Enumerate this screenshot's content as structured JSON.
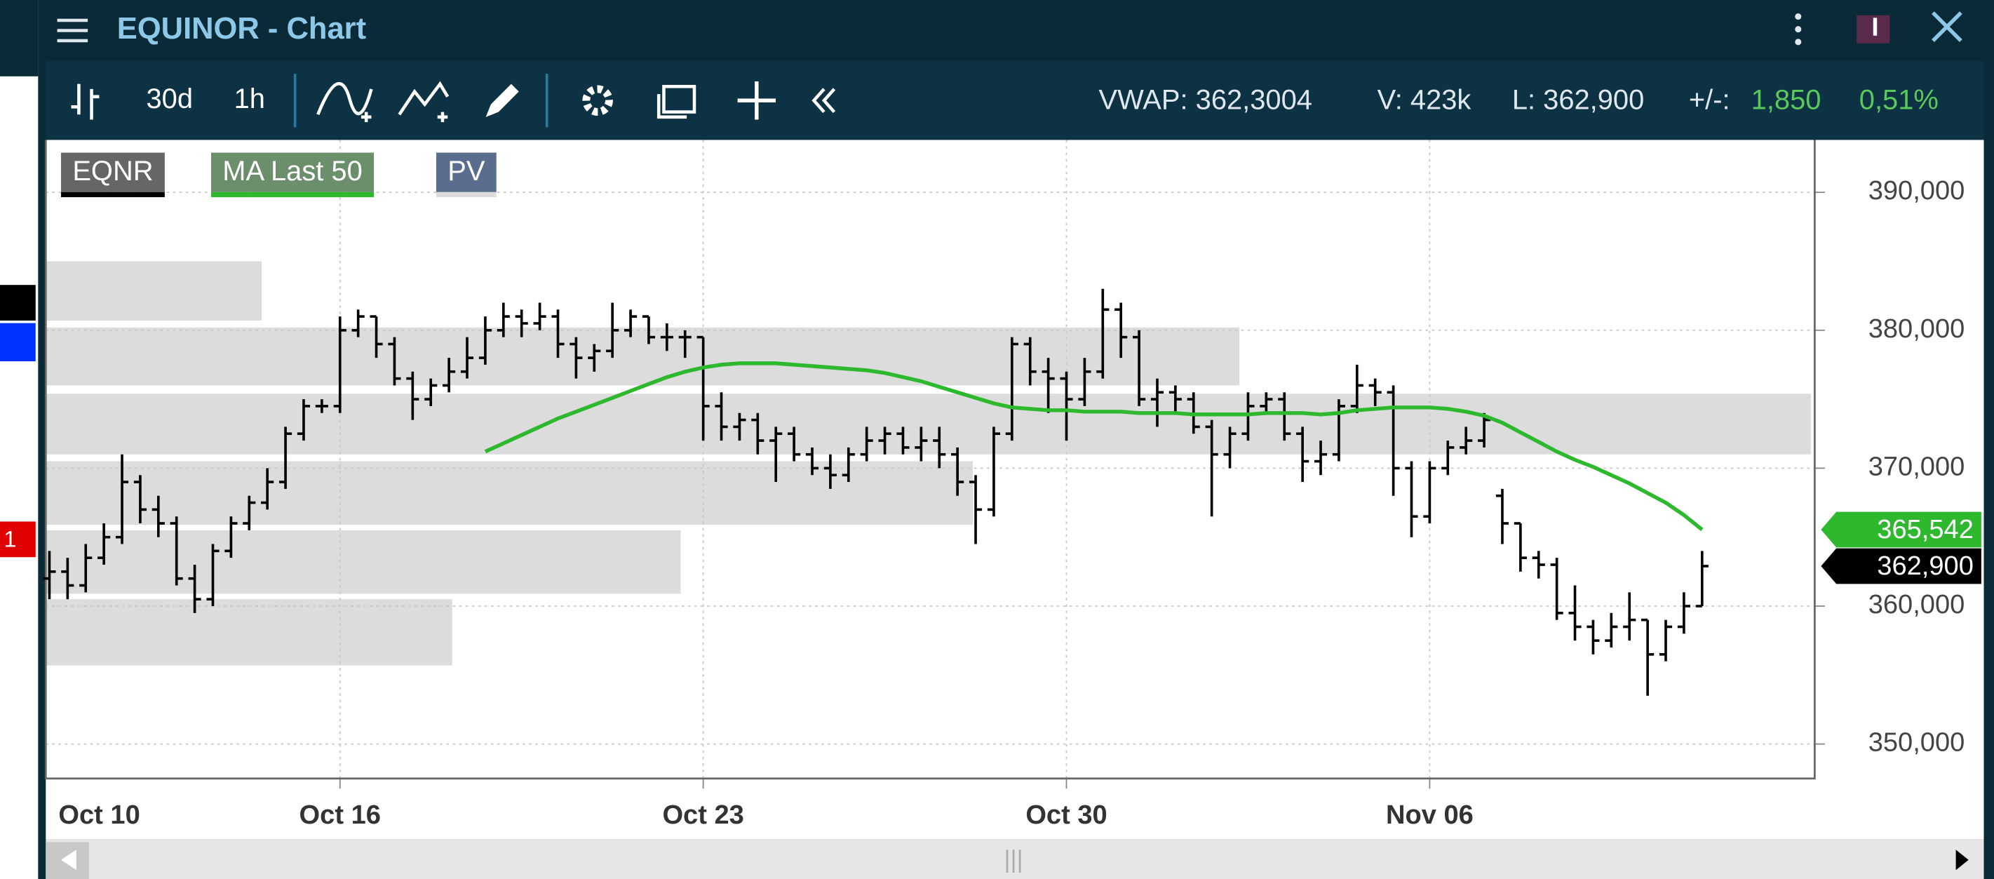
{
  "window": {
    "title": "EQUINOR - Chart",
    "side_badge": "1"
  },
  "toolbar": {
    "period": "30d",
    "interval": "1h"
  },
  "quote": {
    "vwap": "VWAP: 362,3004",
    "volume": "V: 423k",
    "last": "L: 362,900",
    "change_label": "+/-:",
    "change": "1,850",
    "change_pct": "0,51%"
  },
  "chart_data": {
    "type": "ohlc",
    "series": [
      {
        "name": "EQNR",
        "color": "#000000",
        "tag_color": "#666666",
        "open": [
          362,
          362.5,
          361.5,
          363.5,
          365,
          369,
          367,
          366,
          362,
          360.5,
          364,
          366,
          367.5,
          369,
          372.5,
          374.5,
          374.5,
          380,
          381,
          379,
          376.5,
          375,
          376,
          377,
          378,
          380,
          381,
          380.5,
          381,
          379,
          378,
          378.5,
          380,
          381,
          379.5,
          379.5,
          379.5,
          374.5,
          373,
          373.5,
          372,
          372.5,
          371,
          370,
          369.5,
          371,
          372,
          372.5,
          371.5,
          372,
          371,
          369,
          367,
          372.5,
          379,
          377,
          376.5,
          375,
          377,
          381.5,
          379.5,
          375,
          375.5,
          375,
          373,
          371,
          372.5,
          374.5,
          375,
          372.5,
          370.5,
          371,
          374.5,
          376,
          375.5,
          370,
          366.5,
          370,
          371.5,
          372,
          368,
          366,
          363.5,
          363,
          359.5,
          358.5,
          357.5,
          358.5,
          359,
          356.5,
          358.5,
          360
        ],
        "high": [
          364,
          363.5,
          364.5,
          366,
          371,
          369.5,
          368,
          366.5,
          363,
          364.5,
          366.5,
          368,
          370,
          373,
          375,
          375,
          381,
          381.5,
          381,
          379.5,
          377,
          376.5,
          378,
          379.5,
          381,
          382,
          381.5,
          382,
          381.5,
          379.5,
          379,
          382,
          381.5,
          381,
          380.5,
          380,
          379.5,
          375.5,
          374,
          374,
          373,
          373,
          371.5,
          371,
          371.5,
          373,
          373,
          373,
          373,
          373,
          371.5,
          369.5,
          373,
          379.5,
          379.5,
          378,
          377,
          378,
          383,
          382,
          380,
          376.5,
          376,
          375.5,
          373.5,
          373,
          375.5,
          375.5,
          375.5,
          373,
          372,
          375,
          377.5,
          376.5,
          376,
          370.5,
          370.5,
          372,
          373,
          374,
          368.5,
          366,
          364,
          363.5,
          361.5,
          359,
          359.5,
          361,
          359,
          359,
          361,
          364
        ],
        "low": [
          360.5,
          360.5,
          361,
          363,
          364.5,
          366,
          365,
          361.5,
          359.5,
          360,
          363.5,
          365.5,
          367,
          368.5,
          372,
          374,
          374,
          379.5,
          378,
          376,
          373.5,
          374.5,
          375.5,
          376.5,
          377.5,
          379.5,
          379.5,
          380,
          378,
          376.5,
          377,
          378,
          379.5,
          379,
          378.5,
          378,
          372,
          372,
          372,
          371,
          369,
          370.5,
          369.5,
          368.5,
          369,
          370.5,
          371,
          371,
          370.5,
          370,
          368,
          364.5,
          366.5,
          372,
          376,
          374,
          372,
          374.5,
          376.5,
          378,
          374.5,
          373,
          374,
          372.5,
          366.5,
          370,
          372,
          374,
          372,
          369,
          369.5,
          370.5,
          374,
          374.5,
          368,
          365,
          366,
          369.5,
          371,
          371.5,
          364.5,
          362.5,
          362,
          359,
          357.5,
          356.5,
          357,
          357.5,
          353.5,
          356,
          358,
          360
        ],
        "close": [
          362.5,
          361.5,
          363.5,
          365,
          369,
          367,
          366,
          362,
          360.5,
          364,
          366,
          367.5,
          369,
          372.5,
          374.5,
          374.5,
          380,
          381,
          379,
          376.5,
          375,
          376,
          377,
          378,
          380,
          381,
          380.5,
          381,
          379,
          378,
          378.5,
          380,
          381,
          379.5,
          379.5,
          379.5,
          374.5,
          373,
          373.5,
          372,
          372.5,
          371,
          370,
          369.5,
          371,
          372,
          372.5,
          371.5,
          372,
          371,
          369,
          367,
          372.5,
          379,
          377,
          376.5,
          375,
          377,
          381.5,
          379.5,
          375,
          375.5,
          375,
          373,
          371,
          372.5,
          374.5,
          375,
          372.5,
          370.5,
          371,
          374.5,
          376,
          375.5,
          370,
          366.5,
          370,
          371.5,
          372,
          373.5,
          366,
          363.5,
          363,
          359.5,
          358.5,
          357.5,
          358.5,
          359,
          356.5,
          358.5,
          360,
          362.9
        ]
      },
      {
        "name": "MA Last 50",
        "color": "#2eb82e",
        "tag_color": "#6b8e6b",
        "values": [
          null,
          null,
          null,
          null,
          null,
          null,
          null,
          null,
          null,
          null,
          null,
          null,
          null,
          null,
          null,
          null,
          null,
          null,
          null,
          null,
          null,
          null,
          null,
          null,
          371.2,
          371.8,
          372.4,
          373,
          373.6,
          374.1,
          374.6,
          375.1,
          375.6,
          376.1,
          376.6,
          377,
          377.3,
          377.5,
          377.6,
          377.6,
          377.6,
          377.5,
          377.4,
          377.3,
          377.2,
          377.1,
          376.9,
          376.6,
          376.3,
          375.9,
          375.5,
          375.1,
          374.7,
          374.4,
          374.3,
          374.2,
          374.2,
          374.1,
          374.1,
          374.1,
          374,
          374,
          374,
          373.9,
          373.9,
          373.9,
          373.9,
          374,
          374,
          374,
          373.9,
          374,
          374.2,
          374.3,
          374.4,
          374.4,
          374.4,
          374.3,
          374.1,
          373.8,
          373.3,
          372.6,
          371.9,
          371.2,
          370.6,
          370.1,
          369.5,
          368.9,
          368.2,
          367.5,
          366.6,
          365.542
        ]
      }
    ],
    "profile": {
      "name": "PV",
      "color": "#dcdcdc",
      "tag_color": "#5a6d8f",
      "low": [
        380.7,
        376,
        371,
        365.9,
        360.9,
        355.7
      ],
      "high": [
        385,
        380.2,
        375.4,
        370.5,
        365.5,
        360.5
      ],
      "volume": [
        17,
        94,
        139,
        73,
        50,
        32
      ]
    },
    "price_tags": [
      {
        "value": 365.542,
        "label": "365,542",
        "color": "#2eb82e"
      },
      {
        "value": 362.9,
        "label": "362,900",
        "color": "#000000"
      }
    ],
    "xlim": [
      -0.2,
      97.2
    ],
    "xticks": [
      {
        "value": 0,
        "label": "Oct 10"
      },
      {
        "value": 16,
        "label": "Oct 16"
      },
      {
        "value": 36,
        "label": "Oct 23"
      },
      {
        "value": 56,
        "label": "Oct 30"
      },
      {
        "value": 76,
        "label": "Nov 06"
      }
    ],
    "ylim": [
      347.5,
      393.8
    ],
    "yticks": [
      {
        "value": 350,
        "label": "350,000"
      },
      {
        "value": 360,
        "label": "360,000"
      },
      {
        "value": 370,
        "label": "370,000"
      },
      {
        "value": 380,
        "label": "380,000"
      },
      {
        "value": 390,
        "label": "390,000"
      }
    ],
    "grid": true
  }
}
